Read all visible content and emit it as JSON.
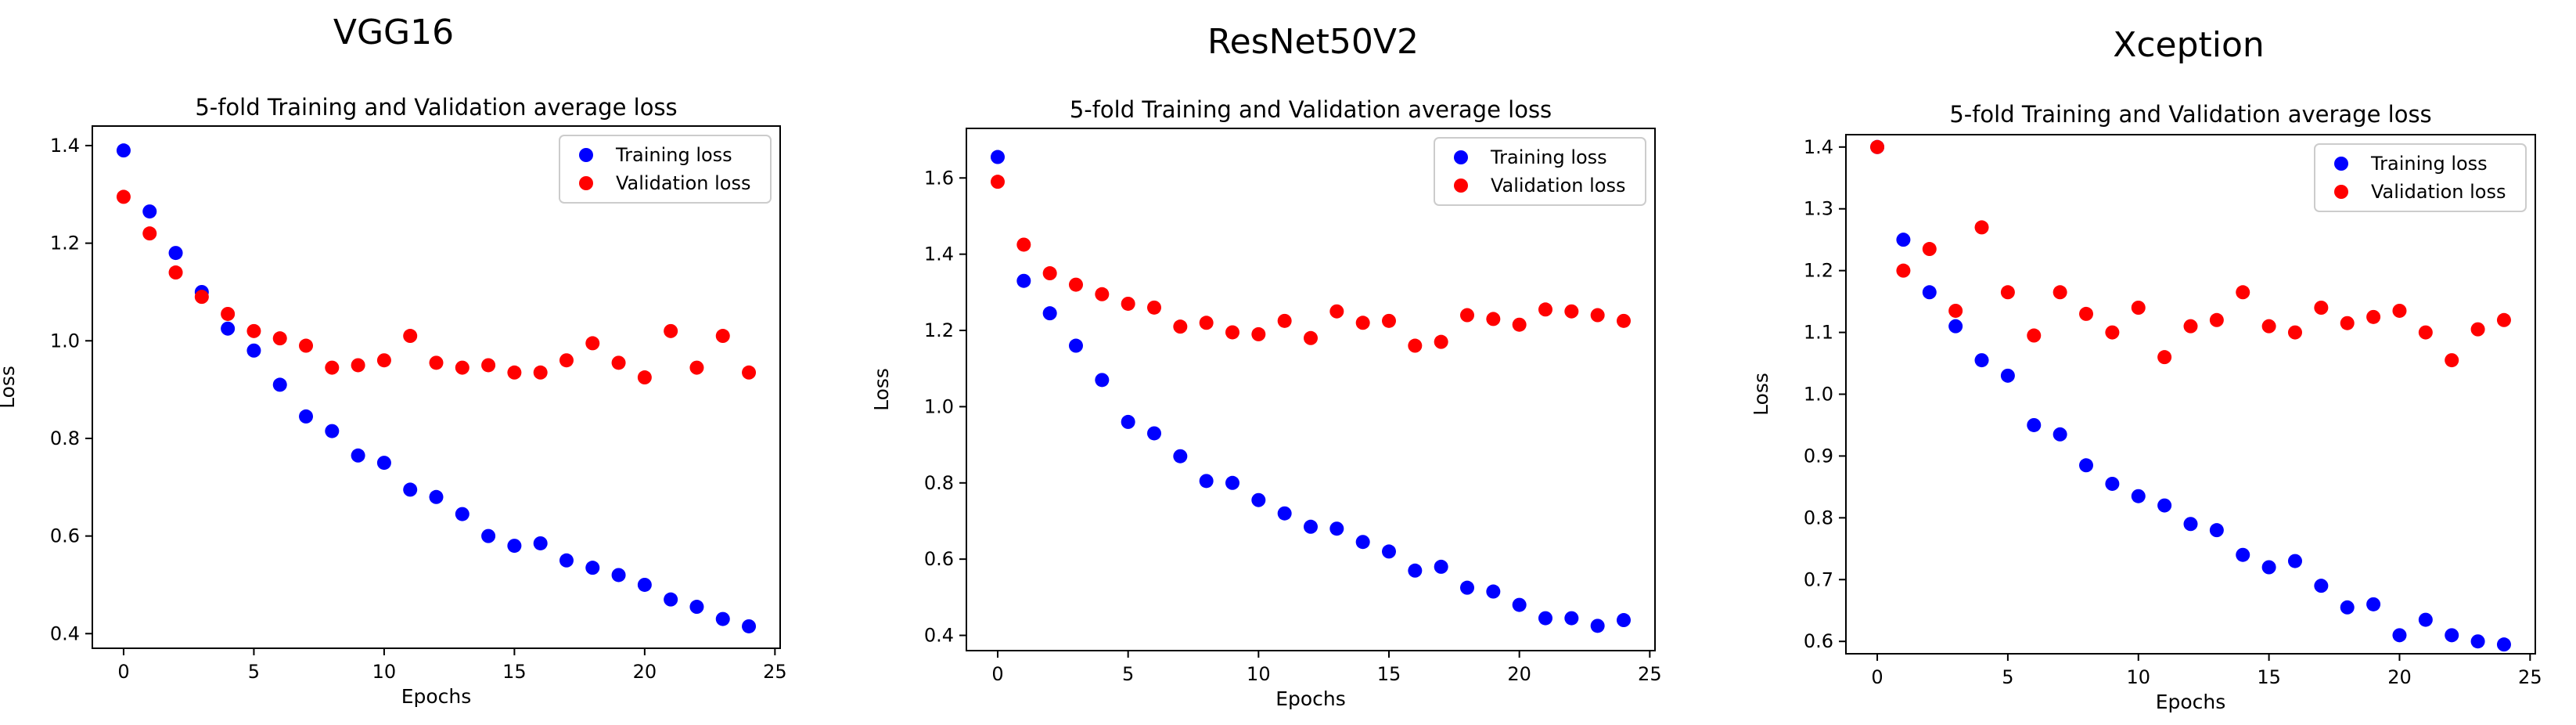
{
  "chart_data": [
    {
      "type": "scatter",
      "heading": "VGG16",
      "title": "5-fold Training and Validation average loss",
      "xlabel": "Epochs",
      "ylabel": "Loss",
      "xlim": [
        -1.2,
        25.2
      ],
      "ylim": [
        0.37,
        1.44
      ],
      "xticks": [
        0,
        5,
        10,
        15,
        20,
        25
      ],
      "yticks": [
        0.4,
        0.6,
        0.8,
        1.0,
        1.2,
        1.4
      ],
      "ytick_labels": [
        "0.4",
        "0.6",
        "0.8",
        "1.0",
        "1.2",
        "1.4"
      ],
      "legend": "top-right",
      "series": [
        {
          "name": "Training loss",
          "color": "#0000ff",
          "x": [
            0,
            1,
            2,
            3,
            4,
            5,
            6,
            7,
            8,
            9,
            10,
            11,
            12,
            13,
            14,
            15,
            16,
            17,
            18,
            19,
            20,
            21,
            22,
            23,
            24
          ],
          "y": [
            1.39,
            1.265,
            1.18,
            1.1,
            1.025,
            0.98,
            0.91,
            0.845,
            0.815,
            0.765,
            0.75,
            0.695,
            0.68,
            0.645,
            0.6,
            0.58,
            0.585,
            0.55,
            0.535,
            0.52,
            0.5,
            0.47,
            0.455,
            0.43,
            0.415
          ]
        },
        {
          "name": "Validation loss",
          "color": "#ff0000",
          "x": [
            0,
            1,
            2,
            3,
            4,
            5,
            6,
            7,
            8,
            9,
            10,
            11,
            12,
            13,
            14,
            15,
            16,
            17,
            18,
            19,
            20,
            21,
            22,
            23,
            24
          ],
          "y": [
            1.295,
            1.22,
            1.14,
            1.09,
            1.055,
            1.02,
            1.005,
            0.99,
            0.945,
            0.95,
            0.96,
            1.01,
            0.955,
            0.945,
            0.95,
            0.935,
            0.935,
            0.96,
            0.995,
            0.955,
            0.925,
            1.02,
            0.945,
            1.01,
            0.935
          ]
        }
      ]
    },
    {
      "type": "scatter",
      "heading": "ResNet50V2",
      "title": "5-fold Training and Validation average loss",
      "xlabel": "Epochs",
      "ylabel": "Loss",
      "xlim": [
        -1.2,
        25.2
      ],
      "ylim": [
        0.36,
        1.73
      ],
      "xticks": [
        0,
        5,
        10,
        15,
        20,
        25
      ],
      "yticks": [
        0.4,
        0.6,
        0.8,
        1.0,
        1.2,
        1.4,
        1.6
      ],
      "ytick_labels": [
        "0.4",
        "0.6",
        "0.8",
        "1.0",
        "1.2",
        "1.4",
        "1.6"
      ],
      "legend": "top-right",
      "series": [
        {
          "name": "Training loss",
          "color": "#0000ff",
          "x": [
            0,
            1,
            2,
            3,
            4,
            5,
            6,
            7,
            8,
            9,
            10,
            11,
            12,
            13,
            14,
            15,
            16,
            17,
            18,
            19,
            20,
            21,
            22,
            23,
            24
          ],
          "y": [
            1.655,
            1.33,
            1.245,
            1.16,
            1.07,
            0.96,
            0.93,
            0.87,
            0.805,
            0.8,
            0.755,
            0.72,
            0.685,
            0.68,
            0.645,
            0.62,
            0.57,
            0.58,
            0.525,
            0.515,
            0.48,
            0.445,
            0.445,
            0.425,
            0.44
          ]
        },
        {
          "name": "Validation loss",
          "color": "#ff0000",
          "x": [
            0,
            1,
            2,
            3,
            4,
            5,
            6,
            7,
            8,
            9,
            10,
            11,
            12,
            13,
            14,
            15,
            16,
            17,
            18,
            19,
            20,
            21,
            22,
            23,
            24
          ],
          "y": [
            1.59,
            1.425,
            1.35,
            1.32,
            1.295,
            1.27,
            1.26,
            1.21,
            1.22,
            1.195,
            1.19,
            1.225,
            1.18,
            1.25,
            1.22,
            1.225,
            1.16,
            1.17,
            1.24,
            1.23,
            1.215,
            1.255,
            1.25,
            1.24,
            1.225
          ]
        }
      ]
    },
    {
      "type": "scatter",
      "heading": "Xception",
      "title": "5-fold Training and Validation average loss",
      "xlabel": "Epochs",
      "ylabel": "Loss",
      "xlim": [
        -1.2,
        25.2
      ],
      "ylim": [
        0.58,
        1.42
      ],
      "xticks": [
        0,
        5,
        10,
        15,
        20,
        25
      ],
      "yticks": [
        0.6,
        0.7,
        0.8,
        0.9,
        1.0,
        1.1,
        1.2,
        1.3,
        1.4
      ],
      "ytick_labels": [
        "0.6",
        "0.7",
        "0.8",
        "0.9",
        "1.0",
        "1.1",
        "1.2",
        "1.3",
        "1.4"
      ],
      "legend": "top-right",
      "series": [
        {
          "name": "Training loss",
          "color": "#0000ff",
          "x": [
            0,
            1,
            2,
            3,
            4,
            5,
            6,
            7,
            8,
            9,
            10,
            11,
            12,
            13,
            14,
            15,
            16,
            17,
            18,
            19,
            20,
            21,
            22,
            23,
            24
          ],
          "y": [
            1.4,
            1.25,
            1.165,
            1.11,
            1.055,
            1.03,
            0.95,
            0.935,
            0.885,
            0.855,
            0.835,
            0.82,
            0.79,
            0.78,
            0.74,
            0.72,
            0.73,
            0.69,
            0.655,
            0.66,
            0.61,
            0.635,
            0.61,
            0.6,
            0.595
          ]
        },
        {
          "name": "Validation loss",
          "color": "#ff0000",
          "x": [
            0,
            1,
            2,
            3,
            4,
            5,
            6,
            7,
            8,
            9,
            10,
            11,
            12,
            13,
            14,
            15,
            16,
            17,
            18,
            19,
            20,
            21,
            22,
            23,
            24
          ],
          "y": [
            1.4,
            1.2,
            1.235,
            1.135,
            1.27,
            1.165,
            1.095,
            1.165,
            1.13,
            1.1,
            1.14,
            1.06,
            1.11,
            1.12,
            1.165,
            1.11,
            1.1,
            1.14,
            1.115,
            1.125,
            1.135,
            1.1,
            1.055,
            1.105,
            1.12
          ]
        }
      ]
    }
  ]
}
